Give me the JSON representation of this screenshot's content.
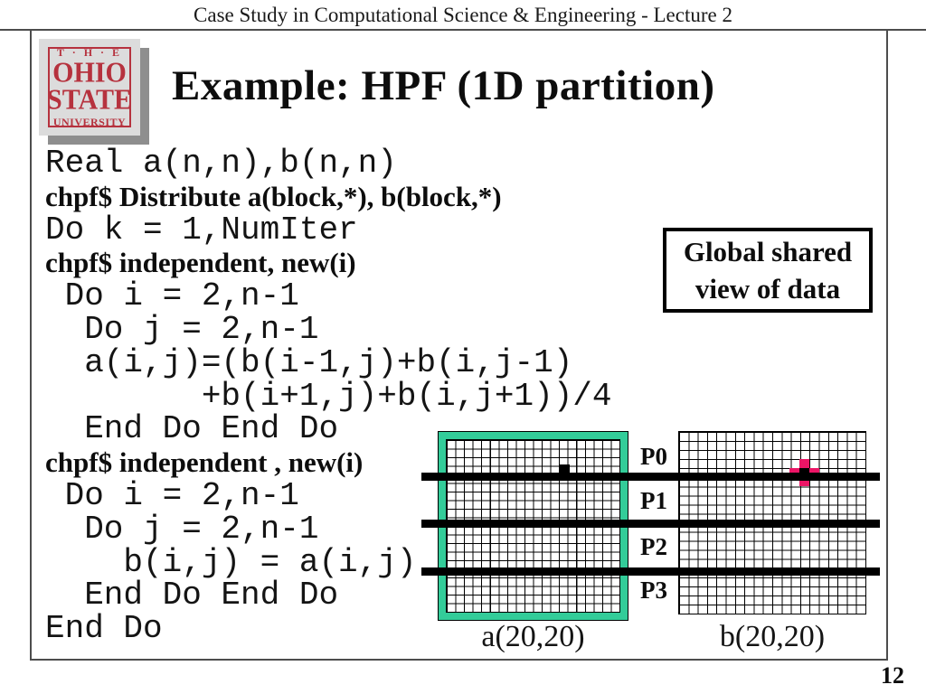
{
  "header": {
    "course_title": "Case Study in Computational Science & Engineering - Lecture 2"
  },
  "slide": {
    "title": "Example: HPF (1D partition)",
    "page_number": "12"
  },
  "logo": {
    "the": "T · H · E",
    "ohio": "OHIO",
    "state": "STATE",
    "university": "UNIVERSITY",
    "red": "#b6323e",
    "background": "#dcdcdc"
  },
  "callout": {
    "line1": "Global shared",
    "line2": "view of data"
  },
  "code": {
    "lines": [
      {
        "text": "Real a(n,n),b(n,n)",
        "kind": "mono"
      },
      {
        "text": "chpf$ Distribute a(block,*), b(block,*)",
        "kind": "directive"
      },
      {
        "text": "Do k = 1,NumIter",
        "kind": "mono"
      },
      {
        "text": "chpf$ independent, new(i)",
        "kind": "directive"
      },
      {
        "text": " Do i = 2,n-1",
        "kind": "mono"
      },
      {
        "text": "  Do j = 2,n-1",
        "kind": "mono"
      },
      {
        "text": "  a(i,j)=(b(i-1,j)+b(i,j-1)",
        "kind": "mono"
      },
      {
        "text": "        +b(i+1,j)+b(i,j+1))/4",
        "kind": "mono"
      },
      {
        "text": "  End Do End Do",
        "kind": "mono"
      },
      {
        "text": "chpf$ independent , new(i)",
        "kind": "directive"
      },
      {
        "text": " Do i = 2,n-1",
        "kind": "mono"
      },
      {
        "text": "  Do j = 2,n-1",
        "kind": "mono"
      },
      {
        "text": "    b(i,j) = a(i,j)",
        "kind": "mono"
      },
      {
        "text": "  End Do End Do",
        "kind": "mono"
      },
      {
        "text": "End Do",
        "kind": "mono"
      }
    ]
  },
  "diagram": {
    "partitions": [
      "P0",
      "P1",
      "P2",
      "P3"
    ],
    "grid_a_label": "a(20,20)",
    "grid_b_label": "b(20,20)",
    "grid_rows": 20,
    "grid_cols": 20,
    "colors": {
      "frame_green": "#33cc99",
      "stencil_pink": "#ec1566",
      "marker_black": "#000000"
    }
  }
}
